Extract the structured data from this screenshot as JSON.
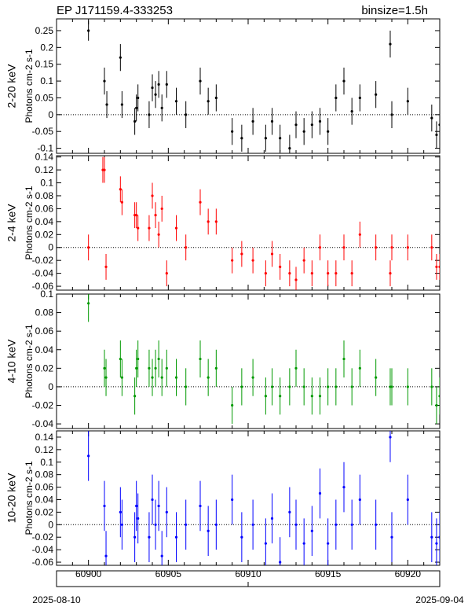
{
  "header": {
    "source": "EP J171159.4-333253",
    "binsize": "binsize=1.5h"
  },
  "footer": {
    "start_date": "2025-08-10",
    "end_date": "2025-09-04"
  },
  "chart_data": [
    {
      "type": "scatter",
      "band": "2-20 keV",
      "ylabel": "Photons cm-2 s-1",
      "color": "#000000",
      "ylim": [
        -0.115,
        0.285
      ],
      "yticks": [
        -0.1,
        -0.05,
        0,
        0.05,
        0.1,
        0.15,
        0.2,
        0.25
      ],
      "xlim": [
        60898,
        60922
      ],
      "xticks": [
        60900,
        60905,
        60910,
        60915,
        60920
      ],
      "x": [
        60900.0,
        60901.0,
        60901.15,
        60902.0,
        60902.1,
        60902.9,
        60903.0,
        60903.1,
        60903.8,
        60904.0,
        60904.2,
        60904.4,
        60904.6,
        60904.9,
        60905.5,
        60906.1,
        60907.0,
        60907.5,
        60908.0,
        60909.0,
        60909.6,
        60910.3,
        60911.1,
        60911.5,
        60912.0,
        60912.6,
        60913.0,
        60913.5,
        60914.0,
        60914.5,
        60915.0,
        60915.5,
        60916.0,
        60916.5,
        60917.0,
        60918.0,
        60918.9,
        60919.0,
        60920.0,
        60921.5,
        60921.8,
        60922.0
      ],
      "y": [
        0.25,
        0.1,
        0.03,
        0.17,
        0.03,
        -0.02,
        0.02,
        0.05,
        0.0,
        0.08,
        0.06,
        0.09,
        0.02,
        0.09,
        0.04,
        0.0,
        0.1,
        0.04,
        0.05,
        -0.05,
        -0.07,
        -0.02,
        -0.07,
        -0.02,
        -0.07,
        -0.1,
        -0.03,
        -0.05,
        -0.03,
        -0.02,
        -0.05,
        0.05,
        0.1,
        0.01,
        0.05,
        0.06,
        0.21,
        0.0,
        0.04,
        -0.01,
        -0.06,
        -0.03
      ],
      "yerr": [
        0.03,
        0.04,
        0.04,
        0.04,
        0.04,
        0.04,
        0.04,
        0.04,
        0.04,
        0.04,
        0.04,
        0.04,
        0.04,
        0.04,
        0.04,
        0.04,
        0.04,
        0.04,
        0.04,
        0.04,
        0.04,
        0.04,
        0.04,
        0.04,
        0.04,
        0.04,
        0.04,
        0.04,
        0.04,
        0.04,
        0.04,
        0.04,
        0.04,
        0.04,
        0.04,
        0.04,
        0.04,
        0.04,
        0.04,
        0.04,
        0.04,
        0.04
      ]
    },
    {
      "type": "scatter",
      "band": "2-4 keV",
      "ylabel": "Photons cm-2 s-1",
      "color": "#ff0000",
      "ylim": [
        -0.066,
        0.142
      ],
      "yticks": [
        -0.06,
        -0.04,
        -0.02,
        0,
        0.02,
        0.04,
        0.06,
        0.08,
        0.1,
        0.12,
        0.14
      ],
      "xlim": [
        60898,
        60922
      ],
      "xticks": [
        60900,
        60905,
        60910,
        60915,
        60920
      ],
      "x": [
        60900.0,
        60900.9,
        60901.0,
        60901.1,
        60902.0,
        60902.1,
        60902.9,
        60903.0,
        60903.1,
        60903.8,
        60904.0,
        60904.2,
        60904.4,
        60904.6,
        60904.9,
        60905.5,
        60906.1,
        60907.0,
        60907.5,
        60908.0,
        60909.0,
        60909.6,
        60910.3,
        60911.1,
        60911.5,
        60912.0,
        60912.6,
        60913.0,
        60913.5,
        60914.0,
        60914.5,
        60915.0,
        60915.5,
        60916.0,
        60916.5,
        60917.0,
        60918.0,
        60918.9,
        60919.0,
        60920.0,
        60921.5,
        60921.8,
        60922.0
      ],
      "y": [
        0.0,
        0.12,
        0.12,
        -0.03,
        0.09,
        0.07,
        0.05,
        0.05,
        0.03,
        0.03,
        0.08,
        0.05,
        0.02,
        0.06,
        -0.04,
        0.03,
        0.0,
        0.07,
        0.04,
        0.04,
        -0.02,
        -0.01,
        -0.02,
        -0.04,
        -0.01,
        -0.03,
        -0.04,
        -0.05,
        -0.02,
        -0.04,
        0.0,
        -0.04,
        -0.04,
        0.0,
        -0.04,
        0.02,
        0.0,
        -0.04,
        0.0,
        0.0,
        0.0,
        -0.03,
        -0.03
      ],
      "yerr": [
        0.02,
        0.02,
        0.02,
        0.02,
        0.02,
        0.02,
        0.02,
        0.02,
        0.02,
        0.02,
        0.02,
        0.02,
        0.02,
        0.02,
        0.02,
        0.02,
        0.02,
        0.02,
        0.02,
        0.02,
        0.02,
        0.02,
        0.02,
        0.02,
        0.02,
        0.02,
        0.02,
        0.02,
        0.02,
        0.02,
        0.02,
        0.02,
        0.02,
        0.02,
        0.02,
        0.02,
        0.02,
        0.02,
        0.02,
        0.02,
        0.02,
        0.02,
        0.02
      ]
    },
    {
      "type": "scatter",
      "band": "4-10 keV",
      "ylabel": "Photons cm-2 s-1",
      "color": "#009900",
      "ylim": [
        -0.045,
        0.1
      ],
      "yticks": [
        -0.04,
        -0.02,
        0,
        0.02,
        0.04,
        0.06,
        0.08,
        0.1
      ],
      "xlim": [
        60898,
        60922
      ],
      "xticks": [
        60900,
        60905,
        60910,
        60915,
        60920
      ],
      "x": [
        60900.0,
        60901.0,
        60901.1,
        60902.0,
        60902.1,
        60902.9,
        60903.0,
        60903.1,
        60903.8,
        60904.0,
        60904.2,
        60904.4,
        60904.6,
        60904.9,
        60905.5,
        60906.1,
        60907.0,
        60907.5,
        60908.0,
        60909.0,
        60909.6,
        60910.3,
        60911.1,
        60911.5,
        60912.0,
        60912.6,
        60913.0,
        60913.5,
        60914.0,
        60914.5,
        60915.0,
        60915.5,
        60916.0,
        60916.5,
        60917.0,
        60918.0,
        60918.9,
        60919.0,
        60920.0,
        60921.5,
        60921.8,
        60922.0
      ],
      "y": [
        0.09,
        0.02,
        0.01,
        0.03,
        0.01,
        -0.01,
        0.02,
        0.03,
        0.02,
        0.01,
        0.02,
        0.03,
        0.01,
        0.02,
        0.01,
        0.0,
        0.03,
        0.01,
        0.02,
        -0.02,
        0.0,
        0.01,
        -0.01,
        0.0,
        -0.01,
        0.0,
        0.02,
        0.0,
        -0.01,
        -0.01,
        0.0,
        0.0,
        0.03,
        0.0,
        0.02,
        0.01,
        0.0,
        0.0,
        0.0,
        0.0,
        -0.02,
        -0.01
      ],
      "yerr": [
        0.02,
        0.02,
        0.02,
        0.02,
        0.02,
        0.02,
        0.02,
        0.02,
        0.02,
        0.02,
        0.02,
        0.02,
        0.02,
        0.02,
        0.02,
        0.02,
        0.02,
        0.02,
        0.02,
        0.02,
        0.02,
        0.02,
        0.02,
        0.02,
        0.02,
        0.02,
        0.02,
        0.02,
        0.02,
        0.02,
        0.02,
        0.02,
        0.02,
        0.02,
        0.02,
        0.02,
        0.02,
        0.02,
        0.02,
        0.02,
        0.02,
        0.02
      ]
    },
    {
      "type": "scatter",
      "band": "10-20 keV",
      "ylabel": "Photons cm-2 s-1",
      "color": "#0000ff",
      "ylim": [
        -0.065,
        0.15
      ],
      "yticks": [
        -0.06,
        -0.04,
        -0.02,
        0,
        0.02,
        0.04,
        0.06,
        0.08,
        0.1,
        0.12,
        0.14
      ],
      "xlim": [
        60898,
        60922
      ],
      "xticks": [
        60900,
        60905,
        60910,
        60915,
        60920
      ],
      "x": [
        60900.0,
        60901.0,
        60901.1,
        60902.0,
        60902.1,
        60902.9,
        60903.0,
        60903.1,
        60903.8,
        60904.0,
        60904.2,
        60904.4,
        60904.6,
        60904.9,
        60905.5,
        60906.1,
        60907.0,
        60907.5,
        60908.0,
        60909.0,
        60909.6,
        60910.3,
        60911.1,
        60911.5,
        60912.0,
        60912.6,
        60913.0,
        60913.5,
        60914.0,
        60914.5,
        60915.0,
        60915.5,
        60916.0,
        60916.5,
        60917.0,
        60918.0,
        60918.9,
        60919.0,
        60920.0,
        60921.5,
        60921.8,
        60922.0
      ],
      "y": [
        0.11,
        0.03,
        -0.05,
        0.02,
        0.0,
        -0.02,
        0.03,
        0.01,
        -0.02,
        0.04,
        0.0,
        0.03,
        -0.05,
        0.02,
        -0.02,
        0.0,
        0.03,
        -0.01,
        0.0,
        0.04,
        -0.02,
        0.0,
        -0.03,
        0.01,
        -0.06,
        0.02,
        0.0,
        -0.03,
        -0.01,
        0.05,
        -0.03,
        0.0,
        0.06,
        0.0,
        0.04,
        0.0,
        0.14,
        -0.02,
        0.04,
        -0.02,
        -0.03,
        -0.02
      ],
      "yerr": [
        0.04,
        0.04,
        0.04,
        0.04,
        0.04,
        0.04,
        0.04,
        0.04,
        0.04,
        0.04,
        0.04,
        0.04,
        0.04,
        0.04,
        0.04,
        0.04,
        0.04,
        0.04,
        0.04,
        0.04,
        0.04,
        0.04,
        0.04,
        0.04,
        0.04,
        0.04,
        0.04,
        0.04,
        0.04,
        0.04,
        0.04,
        0.04,
        0.04,
        0.04,
        0.04,
        0.04,
        0.04,
        0.04,
        0.04,
        0.04,
        0.04,
        0.04
      ]
    }
  ]
}
